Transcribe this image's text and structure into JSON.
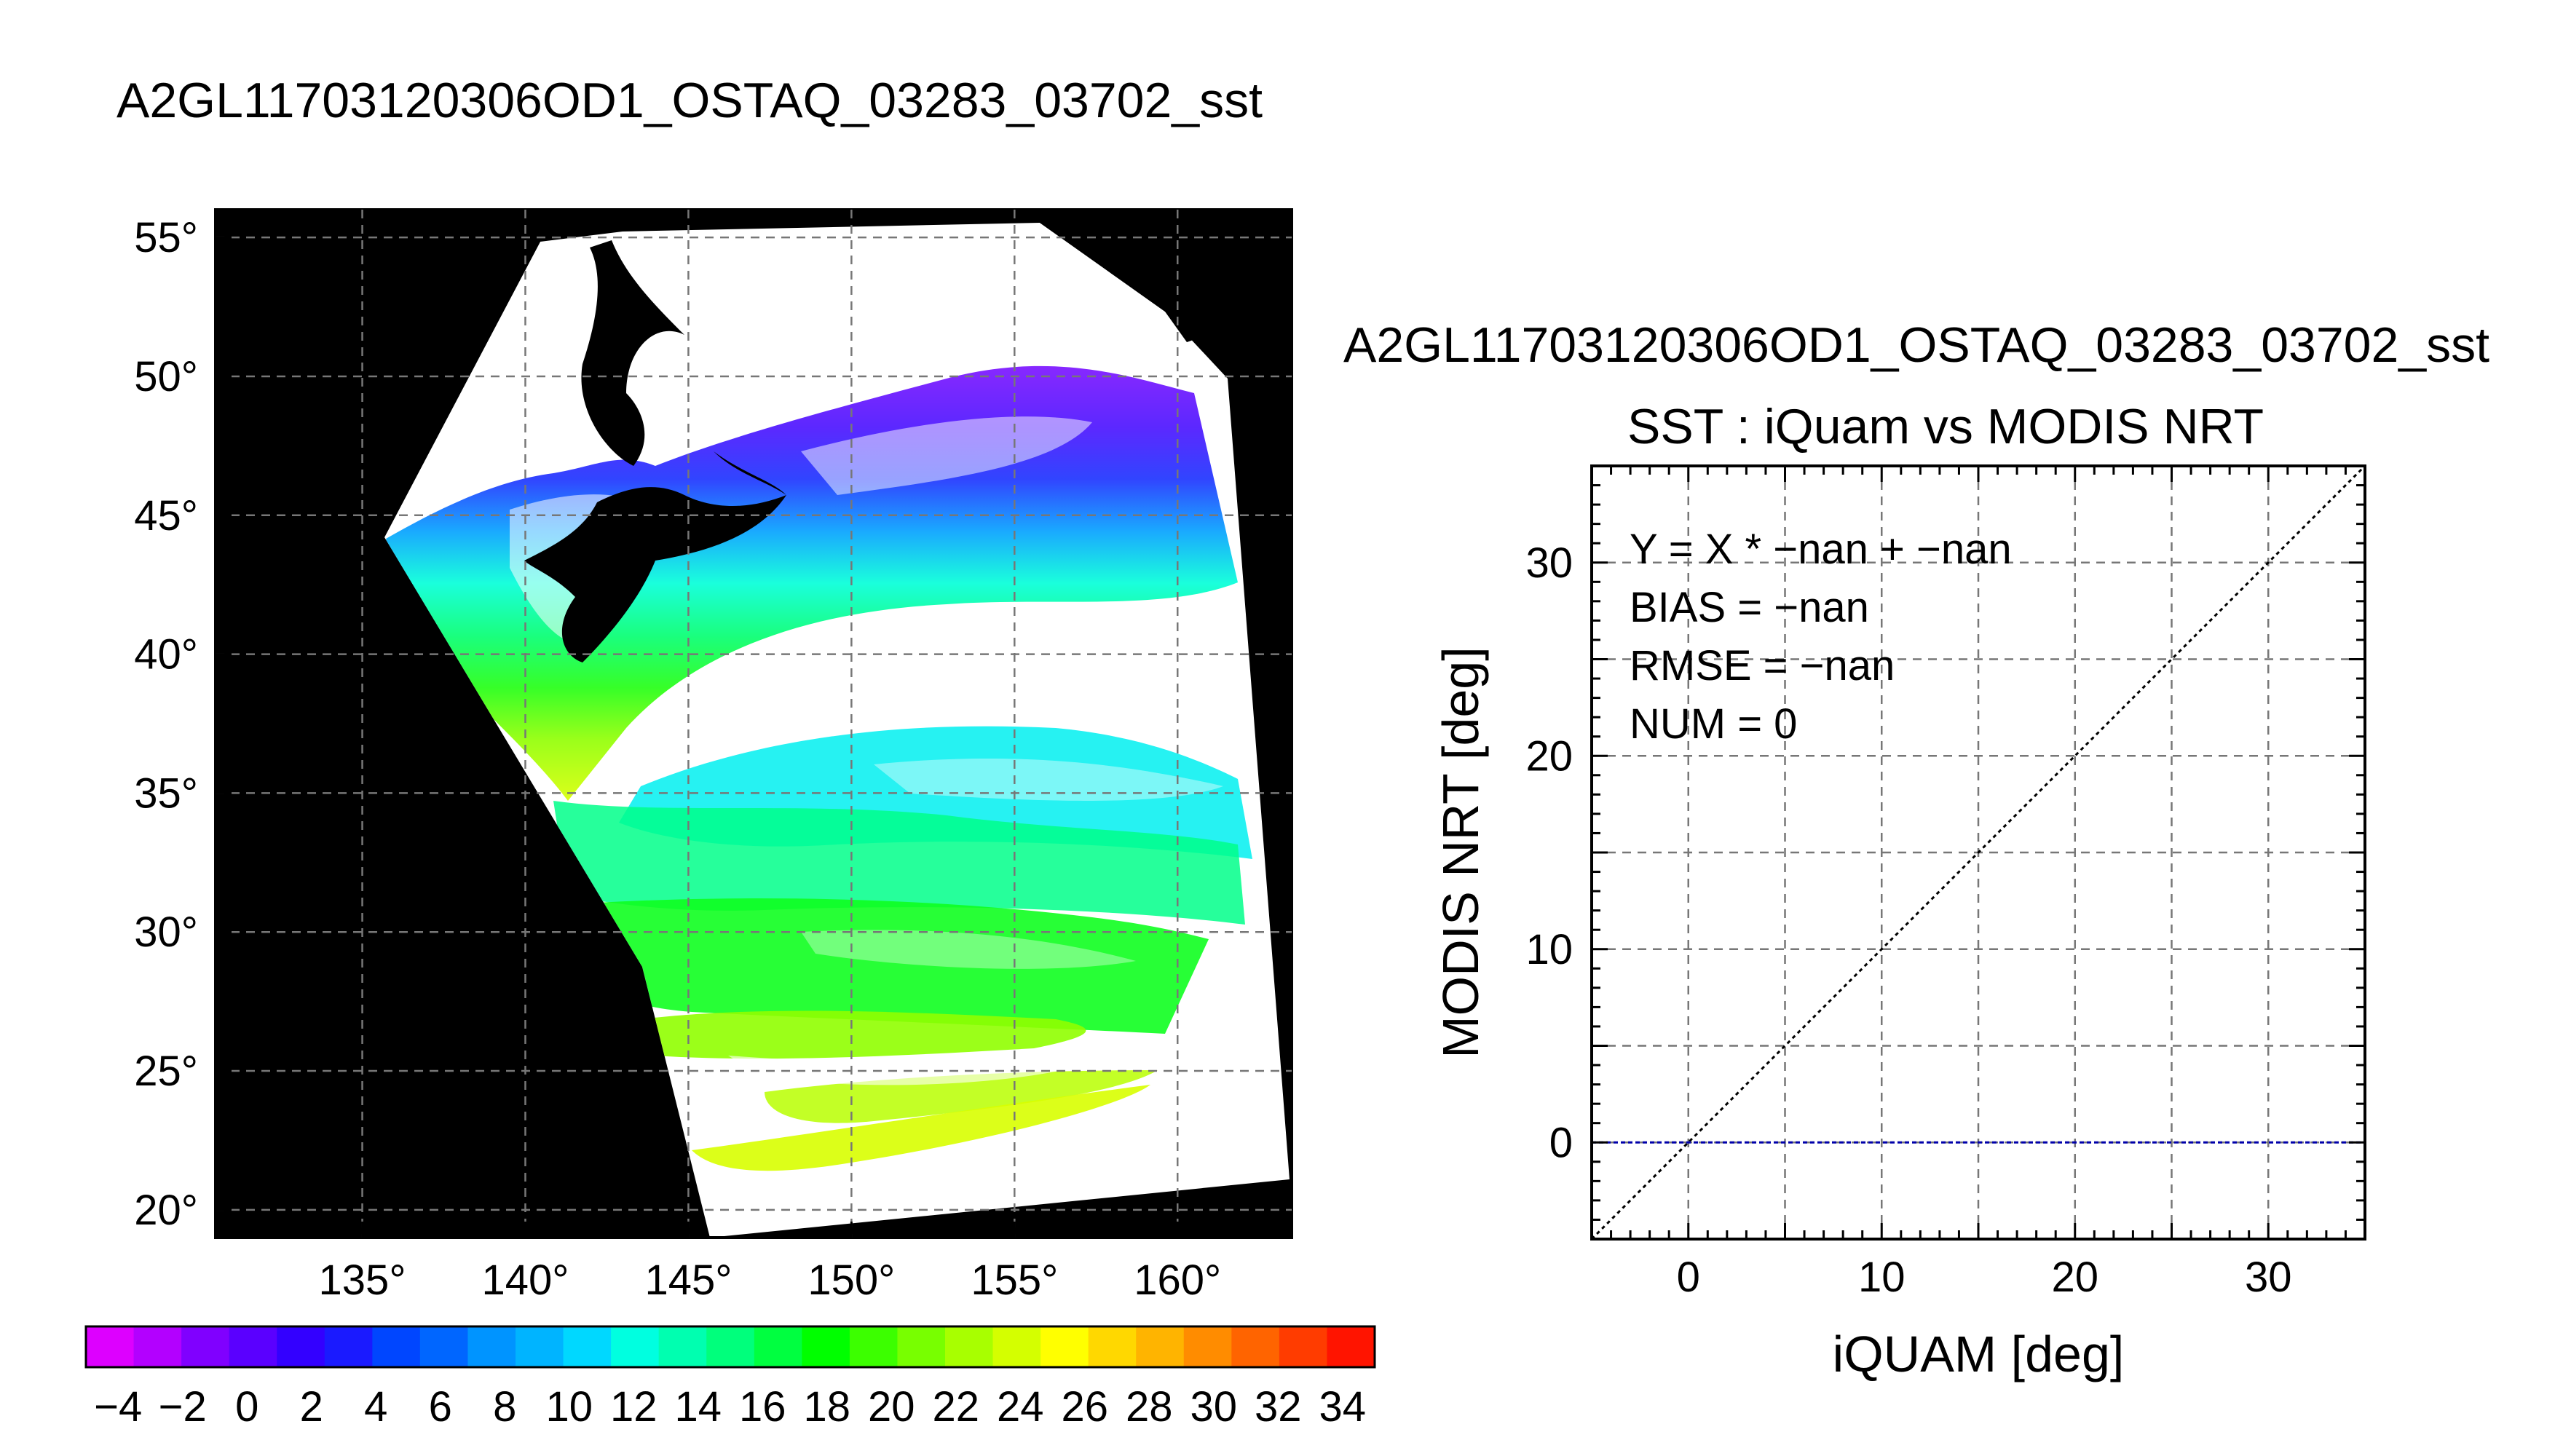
{
  "map": {
    "title": "A2GL11703120306OD1_OSTAQ_03283_03702_sst",
    "lon_range": [
      130.5,
      163.5
    ],
    "lat_range": [
      19,
      56
    ],
    "lon_ticks": [
      "135°",
      "140°",
      "145°",
      "150°",
      "155°",
      "160°"
    ],
    "lon_tick_values": [
      135,
      140,
      145,
      150,
      155,
      160
    ],
    "lat_ticks": [
      "55°",
      "50°",
      "45°",
      "40°",
      "35°",
      "30°",
      "25°",
      "20°"
    ],
    "lat_tick_values": [
      55,
      50,
      45,
      40,
      35,
      30,
      25,
      20
    ],
    "land_color": "#000000",
    "cloud_color": "#ffffff",
    "grid": "dashed"
  },
  "colorbar": {
    "range": [
      -5,
      35
    ],
    "labels": [
      "−4",
      "−2",
      "0",
      "2",
      "4",
      "6",
      "8",
      "10",
      "12",
      "14",
      "16",
      "18",
      "20",
      "22",
      "24",
      "26",
      "28",
      "30",
      "32",
      "34"
    ],
    "label_values": [
      -4,
      -2,
      0,
      2,
      4,
      6,
      8,
      10,
      12,
      14,
      16,
      18,
      20,
      22,
      24,
      26,
      28,
      30,
      32,
      34
    ],
    "colors": [
      "#dd00ff",
      "#b300ff",
      "#8000ff",
      "#5a00ff",
      "#3300ff",
      "#1a1aff",
      "#0046ff",
      "#0066ff",
      "#0094ff",
      "#00b4ff",
      "#00d8ff",
      "#00ffe0",
      "#00ffb0",
      "#00ff7c",
      "#00ff40",
      "#00ff00",
      "#3cff00",
      "#78ff00",
      "#a8ff00",
      "#d4ff00",
      "#ffff00",
      "#ffd800",
      "#ffb400",
      "#ff8c00",
      "#ff6400",
      "#ff3c00",
      "#ff1400"
    ]
  },
  "chart_data": {
    "type": "scatter",
    "file_title": "A2GL11703120306OD1_OSTAQ_03283_03702_sst",
    "title": "SST : iQuam vs MODIS NRT",
    "xlabel": "iQUAM [deg]",
    "ylabel": "MODIS NRT [deg]",
    "xlim": [
      -5,
      35
    ],
    "ylim": [
      -5,
      35
    ],
    "xticks": [
      "0",
      "10",
      "20",
      "30"
    ],
    "xtick_values": [
      0,
      10,
      20,
      30
    ],
    "yticks": [
      "0",
      "10",
      "20",
      "30"
    ],
    "ytick_values": [
      0,
      10,
      20,
      30
    ],
    "grid": "dashed",
    "reference_line": {
      "name": "1:1",
      "points": [
        [
          -5,
          -5
        ],
        [
          35,
          35
        ]
      ],
      "color": "#000000"
    },
    "zero_line": {
      "y": 0,
      "color": "#0000aa"
    },
    "points": [],
    "stats": [
      "Y = X * −nan + −nan",
      "BIAS = −nan",
      "RMSE = −nan",
      "NUM = 0"
    ]
  }
}
